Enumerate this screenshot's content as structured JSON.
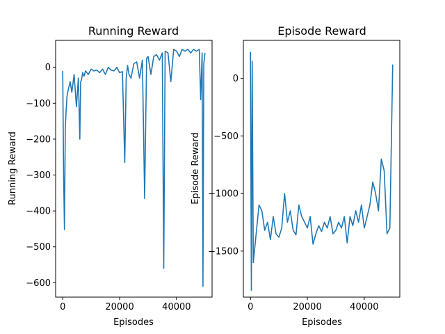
{
  "chart_data": [
    {
      "type": "line",
      "title": "Running Reward",
      "xlabel": "Episodes",
      "ylabel": "Running Reward",
      "xlim": [
        -2500,
        52500
      ],
      "ylim": [
        -640,
        75
      ],
      "xticks": [
        0,
        20000,
        40000
      ],
      "xtick_labels": [
        "0",
        "20000",
        "40000"
      ],
      "yticks": [
        0,
        -100,
        -200,
        -300,
        -400,
        -500,
        -600
      ],
      "ytick_labels": [
        "0",
        "−100",
        "−200",
        "−300",
        "−400",
        "−500",
        "−600"
      ],
      "grid": false,
      "color": "#1f77b4",
      "series": [
        {
          "x": [
            0,
            300,
            600,
            900,
            1200,
            1500,
            2000,
            2600,
            3200,
            4000,
            4800,
            5500,
            6000,
            6300,
            6600,
            7000,
            7500,
            8000,
            9000,
            10000,
            11000,
            12000,
            13000,
            14000,
            15000,
            16000,
            17000,
            18000,
            19000,
            20000,
            21000,
            21800,
            22300,
            22800,
            23300,
            24000,
            25000,
            26000,
            27000,
            28000,
            28800,
            29500,
            30000,
            31000,
            32000,
            33000,
            34000,
            35000,
            35500,
            36000,
            37000,
            38000,
            39000,
            40000,
            41000,
            42000,
            43000,
            44000,
            45000,
            46000,
            47000,
            48000,
            48500,
            49000,
            49300,
            49600,
            50000
          ],
          "y": [
            -10,
            -300,
            -452,
            -170,
            -120,
            -80,
            -60,
            -40,
            -70,
            -20,
            -110,
            -30,
            -200,
            -40,
            -35,
            -15,
            -25,
            -10,
            -20,
            -5,
            -10,
            -8,
            -15,
            -5,
            -20,
            0,
            -8,
            -10,
            0,
            -15,
            -12,
            -265,
            -30,
            5,
            -20,
            -30,
            10,
            15,
            -30,
            20,
            -365,
            25,
            30,
            -20,
            30,
            35,
            20,
            40,
            -560,
            45,
            40,
            -40,
            50,
            45,
            30,
            50,
            45,
            50,
            40,
            50,
            45,
            50,
            -90,
            40,
            -610,
            10,
            40
          ]
        }
      ]
    },
    {
      "type": "line",
      "title": "Episode Reward",
      "xlabel": "Episodes",
      "ylabel": "Episode Reward",
      "xlim": [
        -2500,
        52500
      ],
      "ylim": [
        -1900,
        330
      ],
      "xticks": [
        0,
        20000,
        40000
      ],
      "xtick_labels": [
        "0",
        "20000",
        "40000"
      ],
      "yticks": [
        0,
        -500,
        -1000,
        -1500
      ],
      "ytick_labels": [
        "0",
        "−500",
        "−1000",
        "−1500"
      ],
      "grid": false,
      "color": "#1f77b4",
      "series": [
        {
          "x": [
            0,
            300,
            600,
            1000,
            2000,
            3000,
            4000,
            5000,
            6000,
            7000,
            8000,
            9000,
            10000,
            11000,
            12000,
            13000,
            14000,
            15000,
            16000,
            17000,
            18000,
            19000,
            20000,
            21000,
            22000,
            23000,
            24000,
            25000,
            26000,
            27000,
            28000,
            29000,
            30000,
            31000,
            32000,
            33000,
            34000,
            35000,
            36000,
            37000,
            38000,
            39000,
            40000,
            41000,
            42000,
            43000,
            44000,
            45000,
            46000,
            47000,
            48000,
            49000,
            50000
          ],
          "y": [
            230,
            -1840,
            150,
            -1600,
            -1350,
            -1100,
            -1150,
            -1320,
            -1250,
            -1400,
            -1200,
            -1350,
            -1380,
            -1300,
            -1000,
            -1250,
            -1150,
            -1320,
            -1360,
            -1100,
            -1200,
            -1250,
            -1300,
            -1200,
            -1440,
            -1350,
            -1280,
            -1330,
            -1250,
            -1300,
            -1200,
            -1350,
            -1320,
            -1250,
            -1300,
            -1200,
            -1430,
            -1200,
            -1280,
            -1150,
            -1250,
            -1100,
            -1300,
            -1200,
            -1100,
            -900,
            -1000,
            -1150,
            -700,
            -800,
            -1350,
            -1300,
            120
          ]
        }
      ]
    }
  ]
}
